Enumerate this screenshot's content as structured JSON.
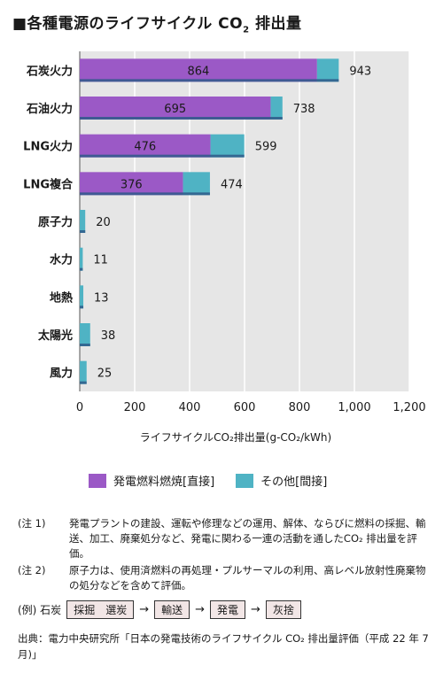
{
  "title": {
    "main": "■各種電源のライフサイクル CO",
    "sub": "2",
    "tail": " 排出量"
  },
  "chart_data": {
    "type": "bar",
    "orientation": "horizontal",
    "stacked": true,
    "categories": [
      "石炭火力",
      "石油火力",
      "LNG火力",
      "LNG複合",
      "原子力",
      "水力",
      "地熱",
      "太陽光",
      "風力"
    ],
    "series": [
      {
        "name": "発電燃料燃焼[直接]",
        "values": [
          864,
          695,
          476,
          376,
          0,
          0,
          0,
          0,
          0
        ],
        "color": "#9b59c6"
      },
      {
        "name": "その他[間接]",
        "values": [
          79,
          43,
          123,
          98,
          20,
          11,
          13,
          38,
          25
        ],
        "color": "#4fb3c4"
      }
    ],
    "direct_labels": [
      "864",
      "695",
      "476",
      "376",
      "",
      "",
      "",
      "",
      ""
    ],
    "total_labels": [
      "943",
      "738",
      "599",
      "474",
      "20",
      "11",
      "13",
      "38",
      "25"
    ],
    "xticks": [
      "0",
      "200",
      "400",
      "600",
      "800",
      "1,000",
      "1,200"
    ],
    "xlim": [
      0,
      1200
    ],
    "xlabel": "ライフサイクルCO₂排出量(g-CO₂/kWh)",
    "grid": true,
    "plot_background": "#e6e6e6",
    "shadow_color": "#2f5a8a"
  },
  "legend": [
    {
      "label": "発電燃料燃焼[直接]",
      "color": "#9b59c6"
    },
    {
      "label": "その他[間接]",
      "color": "#4fb3c4"
    }
  ],
  "notes": [
    {
      "label": "(注 1)",
      "text": "発電プラントの建設、運転や修理などの運用、解体、ならびに燃料の採掘、輸送、加工、廃棄処分など、発電に関わる一連の活動を通したCO₂ 排出量を評価。"
    },
    {
      "label": "(注 2)",
      "text": "原子力は、使用済燃料の再処理・プルサーマルの利用、高レベル放射性廃棄物の処分などを含めて評価。"
    }
  ],
  "example": {
    "prefix": "(例) 石炭",
    "steps": [
      "採掘　選炭",
      "輸送",
      "発電",
      "灰捨"
    ],
    "arrow": "→"
  },
  "source": "出典：電力中央研究所「日本の発電技術のライフサイクル CO₂ 排出量評価（平成 22 年 7 月)」"
}
